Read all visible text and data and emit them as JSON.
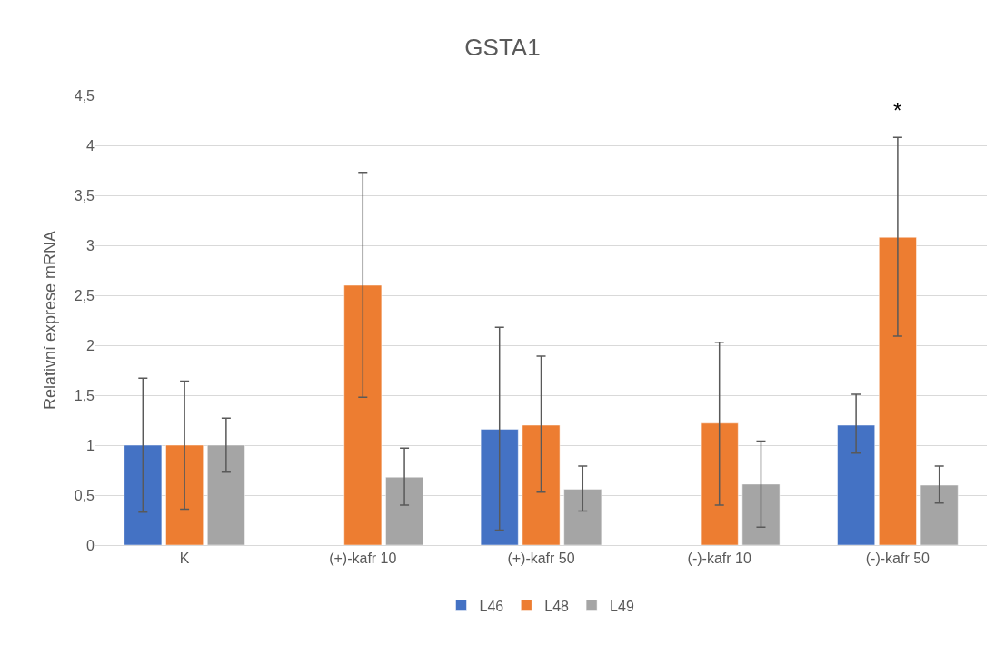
{
  "chart_data": {
    "type": "bar",
    "title": "GSTA1",
    "ylabel": "Relativní exprese mRNA",
    "categories": [
      "K",
      "(+)-kafr 10",
      "(+)-kafr 50",
      "(-)-kafr 10",
      "(-)-kafr 50"
    ],
    "series": [
      {
        "name": "L46",
        "color": "#4472c4",
        "values": [
          1.0,
          null,
          1.16,
          null,
          1.2
        ],
        "errors": [
          [
            0.33,
            1.67
          ],
          null,
          [
            0.15,
            2.18
          ],
          null,
          [
            0.92,
            1.51
          ]
        ]
      },
      {
        "name": "L48",
        "color": "#ed7d31",
        "values": [
          1.0,
          2.6,
          1.2,
          1.22,
          3.08
        ],
        "errors": [
          [
            0.36,
            1.64
          ],
          [
            1.48,
            3.73
          ],
          [
            0.53,
            1.89
          ],
          [
            0.4,
            2.03
          ],
          [
            2.09,
            4.08
          ]
        ]
      },
      {
        "name": "L49",
        "color": "#a5a5a5",
        "values": [
          1.0,
          0.68,
          0.56,
          0.61,
          0.6
        ],
        "errors": [
          [
            0.73,
            1.27
          ],
          [
            0.4,
            0.97
          ],
          [
            0.34,
            0.79
          ],
          [
            0.18,
            1.04
          ],
          [
            0.42,
            0.79
          ]
        ]
      }
    ],
    "ylim": [
      0,
      4.5
    ],
    "yticks": [
      0,
      {
        "value": 0.5,
        "label": "0,5"
      },
      1,
      {
        "value": 1.5,
        "label": "1,5"
      },
      2,
      {
        "value": 2.5,
        "label": "2,5"
      },
      3,
      {
        "value": 3.5,
        "label": "3,5"
      },
      4,
      {
        "value": 4.5,
        "label": "4,5"
      }
    ],
    "annotations": [
      "*"
    ],
    "grid": "y",
    "legend": "bottom"
  }
}
